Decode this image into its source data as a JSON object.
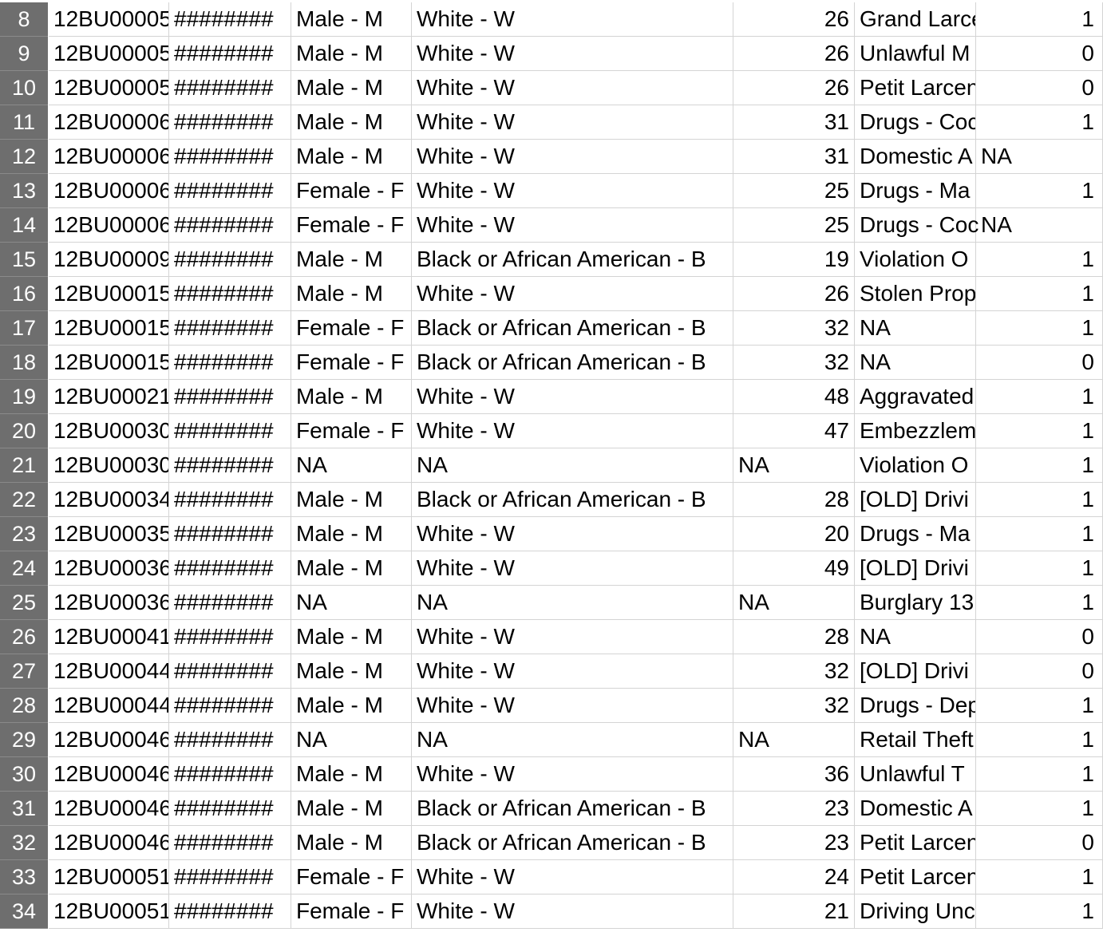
{
  "spreadsheet": {
    "rows": [
      {
        "num": "8",
        "a": "12BU00005",
        "b": "########",
        "c": "Male - M",
        "d": "White - W",
        "e": "26",
        "f": "Grand Larceny",
        "g": "1"
      },
      {
        "num": "9",
        "a": "12BU00005",
        "b": "########",
        "c": "Male - M",
        "d": "White - W",
        "e": "26",
        "f": "Unlawful M",
        "g": "0"
      },
      {
        "num": "10",
        "a": "12BU00005",
        "b": "########",
        "c": "Male - M",
        "d": "White - W",
        "e": "26",
        "f": "Petit Larceny",
        "g": "0"
      },
      {
        "num": "11",
        "a": "12BU00006",
        "b": "########",
        "c": "Male - M",
        "d": "White - W",
        "e": "31",
        "f": "Drugs - Coc",
        "g": "1"
      },
      {
        "num": "12",
        "a": "12BU00006",
        "b": "########",
        "c": "Male - M",
        "d": "White - W",
        "e": "31",
        "f": "Domestic A",
        "g": "NA"
      },
      {
        "num": "13",
        "a": "12BU00006",
        "b": "########",
        "c": "Female - F",
        "d": "White - W",
        "e": "25",
        "f": "Drugs - Ma",
        "g": "1"
      },
      {
        "num": "14",
        "a": "12BU00006",
        "b": "########",
        "c": "Female - F",
        "d": "White - W",
        "e": "25",
        "f": "Drugs - Coc",
        "g": "NA"
      },
      {
        "num": "15",
        "a": "12BU00009",
        "b": "########",
        "c": "Male - M",
        "d": "Black or African American - B",
        "e": "19",
        "f": "Violation O",
        "g": "1"
      },
      {
        "num": "16",
        "a": "12BU00015",
        "b": "########",
        "c": "Male - M",
        "d": "White - W",
        "e": "26",
        "f": "Stolen Prop",
        "g": "1"
      },
      {
        "num": "17",
        "a": "12BU00015",
        "b": "########",
        "c": "Female - F",
        "d": "Black or African American - B",
        "e": "32",
        "f": "NA",
        "g": "1"
      },
      {
        "num": "18",
        "a": "12BU00015",
        "b": "########",
        "c": "Female - F",
        "d": "Black or African American - B",
        "e": "32",
        "f": "NA",
        "g": "0"
      },
      {
        "num": "19",
        "a": "12BU00021",
        "b": "########",
        "c": "Male - M",
        "d": "White - W",
        "e": "48",
        "f": "Aggravated",
        "g": "1"
      },
      {
        "num": "20",
        "a": "12BU00030",
        "b": "########",
        "c": "Female - F",
        "d": "White - W",
        "e": "47",
        "f": "Embezzlem",
        "g": "1"
      },
      {
        "num": "21",
        "a": "12BU00030",
        "b": "########",
        "c": "NA",
        "d": "NA",
        "e": "NA",
        "f": "Violation O",
        "g": "1"
      },
      {
        "num": "22",
        "a": "12BU00034",
        "b": "########",
        "c": "Male - M",
        "d": "Black or African American - B",
        "e": "28",
        "f": "[OLD] Drivi",
        "g": "1"
      },
      {
        "num": "23",
        "a": "12BU00035",
        "b": "########",
        "c": "Male - M",
        "d": "White - W",
        "e": "20",
        "f": "Drugs - Ma",
        "g": "1"
      },
      {
        "num": "24",
        "a": "12BU00036",
        "b": "########",
        "c": "Male - M",
        "d": "White - W",
        "e": "49",
        "f": "[OLD] Drivi",
        "g": "1"
      },
      {
        "num": "25",
        "a": "12BU00036",
        "b": "########",
        "c": "NA",
        "d": "NA",
        "e": "NA",
        "f": "Burglary 13",
        "g": "1"
      },
      {
        "num": "26",
        "a": "12BU00041",
        "b": "########",
        "c": "Male - M",
        "d": "White - W",
        "e": "28",
        "f": "NA",
        "g": "0"
      },
      {
        "num": "27",
        "a": "12BU00044",
        "b": "########",
        "c": "Male - M",
        "d": "White - W",
        "e": "32",
        "f": "[OLD] Drivi",
        "g": "0"
      },
      {
        "num": "28",
        "a": "12BU00044",
        "b": "########",
        "c": "Male - M",
        "d": "White - W",
        "e": "32",
        "f": "Drugs - Dep",
        "g": "1"
      },
      {
        "num": "29",
        "a": "12BU00046",
        "b": "########",
        "c": "NA",
        "d": "NA",
        "e": "NA",
        "f": "Retail Theft",
        "g": "1"
      },
      {
        "num": "30",
        "a": "12BU00046",
        "b": "########",
        "c": "Male - M",
        "d": "White - W",
        "e": "36",
        "f": "Unlawful T",
        "g": "1"
      },
      {
        "num": "31",
        "a": "12BU00046",
        "b": "########",
        "c": "Male - M",
        "d": "Black or African American - B",
        "e": "23",
        "f": "Domestic A",
        "g": "1"
      },
      {
        "num": "32",
        "a": "12BU00046",
        "b": "########",
        "c": "Male - M",
        "d": "Black or African American - B",
        "e": "23",
        "f": "Petit Larceny",
        "g": "0"
      },
      {
        "num": "33",
        "a": "12BU00051",
        "b": "########",
        "c": "Female - F",
        "d": "White - W",
        "e": "24",
        "f": "Petit Larceny",
        "g": "1"
      },
      {
        "num": "34",
        "a": "12BU00051",
        "b": "########",
        "c": "Female - F",
        "d": "White - W",
        "e": "21",
        "f": "Driving Unc",
        "g": "1"
      }
    ]
  },
  "colors": {
    "row_header_bg": "#6e6e6e",
    "row_header_text": "#ffffff",
    "gridline": "#d4d4d4",
    "cell_text": "#000000"
  }
}
